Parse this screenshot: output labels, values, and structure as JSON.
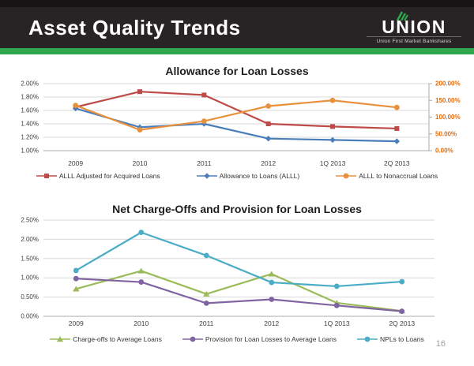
{
  "header": {
    "title": "Asset Quality Trends",
    "logo": {
      "wordmark": "UNION",
      "tagline": "Union First Market Bankshares"
    }
  },
  "page_number": "16",
  "colors": {
    "header_bg": "#282425",
    "header_top_strip": "#161314",
    "accent_green": "#2EA74E",
    "grid_line": "#D9D9D9",
    "axis_line": "#ABABAB",
    "right_axis_label": "#E36C0A"
  },
  "chart_data": [
    {
      "type": "line",
      "title": "Allowance for Loan Losses",
      "categories": [
        "2009",
        "2010",
        "2011",
        "2012",
        "1Q 2013",
        "2Q 2013"
      ],
      "y_left": {
        "min": 1.0,
        "max": 2.0,
        "step": 0.2,
        "tick_labels": [
          "1.00%",
          "1.20%",
          "1.40%",
          "1.60%",
          "1.80%",
          "2.00%"
        ]
      },
      "y_right": {
        "min": 0,
        "max": 200,
        "step": 50,
        "tick_labels": [
          "0.00%",
          "50.00%",
          "100.00%",
          "150.00%",
          "200.00%"
        ],
        "color": "#E36C0A"
      },
      "grid": true,
      "legend_position": "bottom",
      "series": [
        {
          "name": "ALLL Adjusted for Acquired Loans",
          "color": "#BE4B48",
          "marker": "square",
          "axis": "left",
          "values": [
            1.65,
            1.88,
            1.83,
            1.4,
            1.36,
            1.33
          ]
        },
        {
          "name": "Allowance to Loans (ALLL)",
          "color": "#4A7EBB",
          "marker": "diamond",
          "axis": "left",
          "values": [
            1.63,
            1.35,
            1.4,
            1.18,
            1.16,
            1.14
          ]
        },
        {
          "name": "ALLL to Nonaccrual Loans",
          "color": "#E8913D",
          "marker": "circle",
          "axis": "right",
          "values": [
            135,
            62,
            88,
            133,
            150,
            129
          ]
        }
      ]
    },
    {
      "type": "line",
      "title": "Net Charge-Offs and Provision for Loan Losses",
      "categories": [
        "2009",
        "2010",
        "2011",
        "2012",
        "1Q 2013",
        "2Q 2013"
      ],
      "y_left": {
        "min": 0,
        "max": 2.5,
        "step": 0.5,
        "tick_labels": [
          "0.00%",
          "0.50%",
          "1.00%",
          "1.50%",
          "2.00%",
          "2.50%"
        ]
      },
      "grid": true,
      "legend_position": "bottom",
      "series": [
        {
          "name": "Charge-offs to Average Loans",
          "color": "#9BBB59",
          "marker": "triangle",
          "axis": "left",
          "values": [
            0.71,
            1.18,
            0.58,
            1.1,
            0.35,
            0.14
          ]
        },
        {
          "name": "Provision for Loan Losses to Average Loans",
          "color": "#8064A2",
          "marker": "circle",
          "axis": "left",
          "values": [
            0.98,
            0.89,
            0.34,
            0.44,
            0.28,
            0.13
          ]
        },
        {
          "name": "NPLs to Loans",
          "color": "#4BACC6",
          "marker": "circle",
          "axis": "left",
          "values": [
            1.19,
            2.18,
            1.58,
            0.88,
            0.78,
            0.9
          ]
        }
      ]
    }
  ]
}
